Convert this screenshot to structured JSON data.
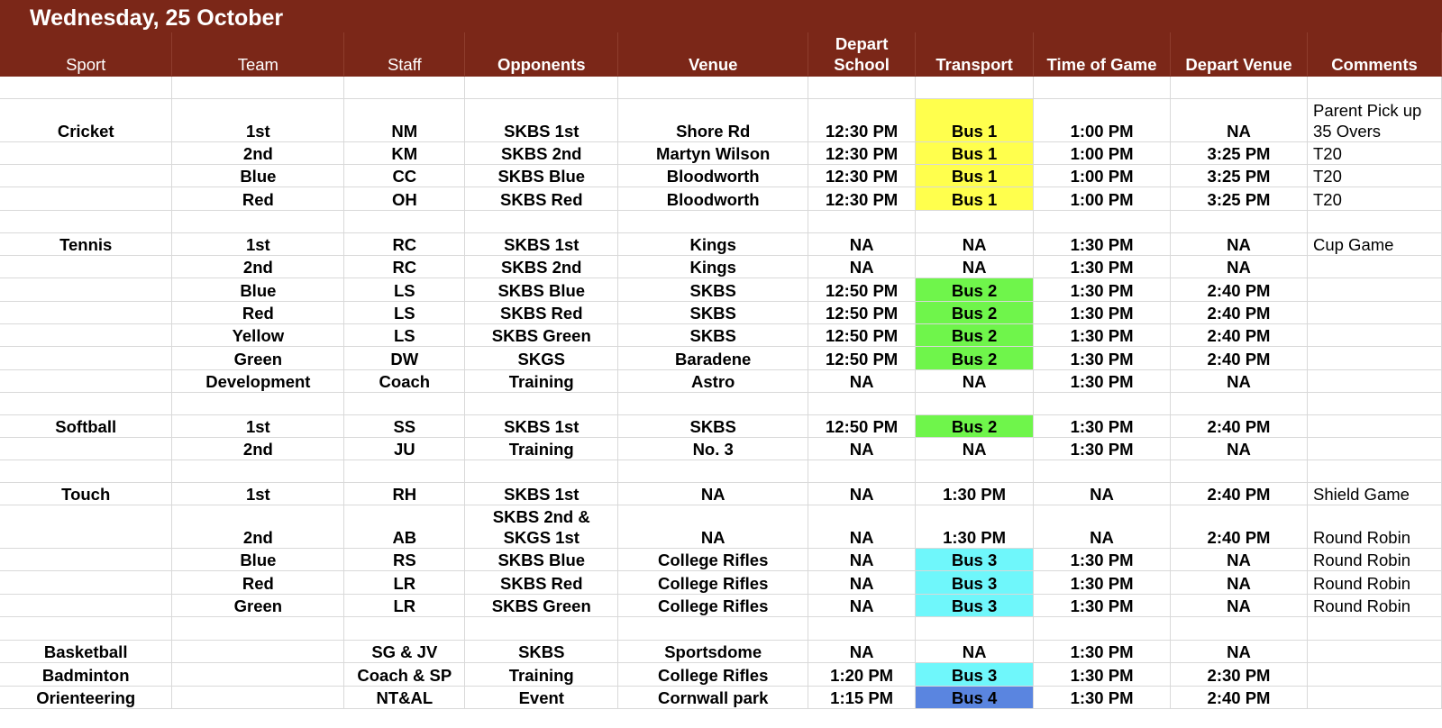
{
  "title": "Wednesday, 25 October",
  "headers": {
    "sport": "Sport",
    "team": "Team",
    "staff": "Staff",
    "opponents": "Opponents",
    "venue": "Venue",
    "depart_school": "Depart School",
    "transport": "Transport",
    "time_of_game": "Time of Game",
    "depart_venue": "Depart Venue",
    "comments": "Comments"
  },
  "colors": {
    "header_bg": "#7b2718",
    "bus_1": "#ffff4d",
    "bus_2": "#6ff54b",
    "bus_3": "#6ff7fb",
    "bus_4": "#5a85e0"
  },
  "rows": [
    {
      "sport": "Cricket",
      "team": "1st",
      "staff": "NM",
      "opponents": "SKBS 1st",
      "venue": "Shore Rd",
      "depart_school": "12:30 PM",
      "transport": "Bus 1",
      "time_of_game": "1:00 PM",
      "depart_venue": "NA",
      "comments": "Parent Pick up 35 Overs"
    },
    {
      "sport": "",
      "team": "2nd",
      "staff": "KM",
      "opponents": "SKBS 2nd",
      "venue": "Martyn Wilson",
      "depart_school": "12:30 PM",
      "transport": "Bus 1",
      "time_of_game": "1:00 PM",
      "depart_venue": "3:25 PM",
      "comments": "T20"
    },
    {
      "sport": "",
      "team": "Blue",
      "staff": "CC",
      "opponents": "SKBS Blue",
      "venue": "Bloodworth",
      "depart_school": "12:30 PM",
      "transport": "Bus 1",
      "time_of_game": "1:00 PM",
      "depart_venue": "3:25 PM",
      "comments": "T20"
    },
    {
      "sport": "",
      "team": "Red",
      "staff": "OH",
      "opponents": "SKBS Red",
      "venue": "Bloodworth",
      "depart_school": "12:30 PM",
      "transport": "Bus 1",
      "time_of_game": "1:00 PM",
      "depart_venue": "3:25 PM",
      "comments": "T20"
    },
    {
      "sport": "Tennis",
      "team": "1st",
      "staff": "RC",
      "opponents": "SKBS 1st",
      "venue": "Kings",
      "depart_school": "NA",
      "transport": "NA",
      "time_of_game": "1:30 PM",
      "depart_venue": "NA",
      "comments": "Cup Game"
    },
    {
      "sport": "",
      "team": "2nd",
      "staff": "RC",
      "opponents": "SKBS 2nd",
      "venue": "Kings",
      "depart_school": "NA",
      "transport": "NA",
      "time_of_game": "1:30 PM",
      "depart_venue": "NA",
      "comments": ""
    },
    {
      "sport": "",
      "team": "Blue",
      "staff": "LS",
      "opponents": "SKBS Blue",
      "venue": "SKBS",
      "depart_school": "12:50 PM",
      "transport": "Bus 2",
      "time_of_game": "1:30 PM",
      "depart_venue": "2:40 PM",
      "comments": ""
    },
    {
      "sport": "",
      "team": "Red",
      "staff": "LS",
      "opponents": "SKBS Red",
      "venue": "SKBS",
      "depart_school": "12:50 PM",
      "transport": "Bus 2",
      "time_of_game": "1:30 PM",
      "depart_venue": "2:40 PM",
      "comments": ""
    },
    {
      "sport": "",
      "team": "Yellow",
      "staff": "LS",
      "opponents": "SKBS Green",
      "venue": "SKBS",
      "depart_school": "12:50 PM",
      "transport": "Bus 2",
      "time_of_game": "1:30 PM",
      "depart_venue": "2:40 PM",
      "comments": ""
    },
    {
      "sport": "",
      "team": "Green",
      "staff": "DW",
      "opponents": "SKGS",
      "venue": "Baradene",
      "depart_school": "12:50 PM",
      "transport": "Bus 2",
      "time_of_game": "1:30 PM",
      "depart_venue": "2:40 PM",
      "comments": ""
    },
    {
      "sport": "",
      "team": "Development",
      "staff": "Coach",
      "opponents": "Training",
      "venue": "Astro",
      "depart_school": "NA",
      "transport": "NA",
      "time_of_game": "1:30 PM",
      "depart_venue": "NA",
      "comments": ""
    },
    {
      "sport": "Softball",
      "team": "1st",
      "staff": "SS",
      "opponents": "SKBS 1st",
      "venue": "SKBS",
      "depart_school": "12:50 PM",
      "transport": "Bus 2",
      "time_of_game": "1:30 PM",
      "depart_venue": "2:40 PM",
      "comments": ""
    },
    {
      "sport": "",
      "team": "2nd",
      "staff": "JU",
      "opponents": "Training",
      "venue": "No. 3",
      "depart_school": "NA",
      "transport": "NA",
      "time_of_game": "1:30 PM",
      "depart_venue": "NA",
      "comments": ""
    },
    {
      "sport": "Touch",
      "team": "1st",
      "staff": "RH",
      "opponents": "SKBS 1st",
      "venue": "NA",
      "depart_school": "NA",
      "transport": "1:30 PM",
      "time_of_game": "NA",
      "depart_venue": "2:40 PM",
      "comments": "Shield Game"
    },
    {
      "sport": "",
      "team": "2nd",
      "staff": "AB",
      "opponents": "SKBS 2nd & SKGS 1st",
      "venue": "NA",
      "depart_school": "NA",
      "transport": "1:30 PM",
      "time_of_game": "NA",
      "depart_venue": "2:40 PM",
      "comments": "Round Robin"
    },
    {
      "sport": "",
      "team": "Blue",
      "staff": "RS",
      "opponents": "SKBS Blue",
      "venue": "College Rifles",
      "depart_school": "NA",
      "transport": "Bus 3",
      "time_of_game": "1:30 PM",
      "depart_venue": "NA",
      "comments": "Round Robin"
    },
    {
      "sport": "",
      "team": "Red",
      "staff": "LR",
      "opponents": "SKBS Red",
      "venue": "College Rifles",
      "depart_school": "NA",
      "transport": "Bus 3",
      "time_of_game": "1:30 PM",
      "depart_venue": "NA",
      "comments": "Round Robin"
    },
    {
      "sport": "",
      "team": "Green",
      "staff": "LR",
      "opponents": "SKBS Green",
      "venue": "College Rifles",
      "depart_school": "NA",
      "transport": "Bus 3",
      "time_of_game": "1:30 PM",
      "depart_venue": "NA",
      "comments": "Round Robin"
    },
    {
      "sport": "Basketball",
      "team": "",
      "staff": "SG & JV",
      "opponents": "SKBS",
      "venue": "Sportsdome",
      "depart_school": "NA",
      "transport": "NA",
      "time_of_game": "1:30 PM",
      "depart_venue": "NA",
      "comments": ""
    },
    {
      "sport": "Badminton",
      "team": "",
      "staff": "Coach & SP",
      "opponents": "Training",
      "venue": "College Rifles",
      "depart_school": "1:20 PM",
      "transport": "Bus 3",
      "time_of_game": "1:30 PM",
      "depart_venue": "2:30 PM",
      "comments": ""
    },
    {
      "sport": "Orienteering",
      "team": "",
      "staff": "NT&AL",
      "opponents": "Event",
      "venue": "Cornwall park",
      "depart_school": "1:15 PM",
      "transport": "Bus 4",
      "time_of_game": "1:30 PM",
      "depart_venue": "2:40 PM",
      "comments": ""
    }
  ]
}
